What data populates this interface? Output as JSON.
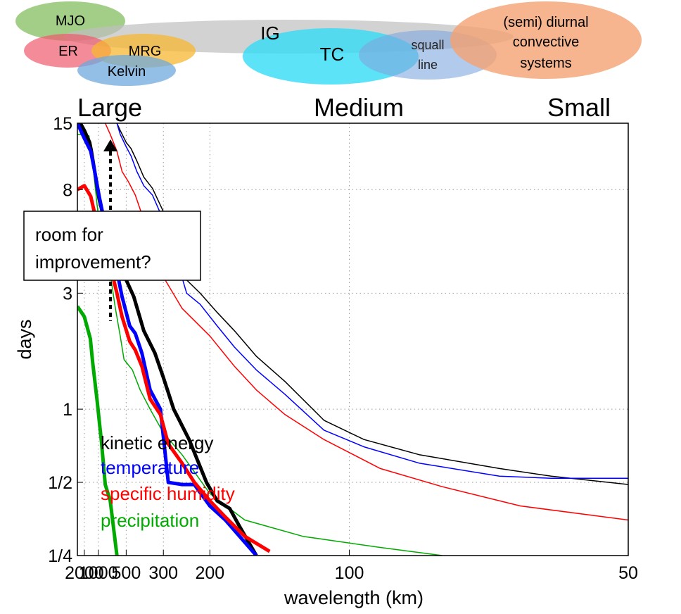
{
  "bubbles": [
    {
      "label": "MJO",
      "color": "#8cc26a"
    },
    {
      "label": "IG",
      "color": "#bfbfbf"
    },
    {
      "label": "ER",
      "color": "#f05a6e"
    },
    {
      "label": "MRG",
      "color": "#f7b731"
    },
    {
      "label": "Kelvin",
      "color": "#6fa8dc"
    },
    {
      "label": "TC",
      "color": "#33dcf5"
    },
    {
      "label": "squall line",
      "lines": [
        "squall",
        "line"
      ],
      "color": "#7fa6e0"
    },
    {
      "label": "(semi) diurnal convective systems",
      "lines": [
        "(semi) diurnal",
        "convective",
        "systems"
      ],
      "color": "#f4a373"
    }
  ],
  "scale_labels": [
    "Large",
    "Medium",
    "Small"
  ],
  "annotation": {
    "lines": [
      "room for",
      "improvement?"
    ]
  },
  "chart_data": {
    "type": "line",
    "xlabel": "wavelength (km)",
    "ylabel": "days",
    "x_axis": {
      "scale": "reciprocal",
      "ticks": [
        2000,
        1000,
        500,
        300,
        200,
        100,
        50
      ],
      "tick_labels": [
        "2000",
        "1000",
        "500",
        "300",
        "200",
        "100",
        "50"
      ],
      "range": [
        4000,
        50
      ]
    },
    "y_axis": {
      "scale": "log",
      "ticks": [
        0.25,
        0.5,
        1,
        3,
        8,
        15
      ],
      "tick_labels": [
        "1/4",
        "1/2",
        "1",
        "3",
        "8",
        "15"
      ],
      "range": [
        0.25,
        15
      ]
    },
    "grid": true,
    "legend_placement": "bottom-left",
    "legend": [
      {
        "name": "kinetic energy",
        "color": "#000000"
      },
      {
        "name": "temperature",
        "color": "#0000ff"
      },
      {
        "name": "specific humidity",
        "color": "#ff0000"
      },
      {
        "name": "precipitation",
        "color": "#00aa00"
      }
    ],
    "series": [
      {
        "name": "kinetic energy",
        "color": "#000000",
        "width": "thick",
        "x": [
          2800,
          2000,
          1450,
          1330,
          1150,
          970,
          800,
          640,
          560,
          500,
          440,
          380,
          330,
          300,
          270,
          235,
          205,
          190,
          175,
          165,
          150
        ],
        "y": [
          15,
          14,
          12.5,
          11.5,
          9.5,
          7.3,
          5.8,
          5,
          4.1,
          3.4,
          2.9,
          2.1,
          1.7,
          1.35,
          1.0,
          0.75,
          0.5,
          0.42,
          0.39,
          0.33,
          0.25
        ]
      },
      {
        "name": "temperature",
        "color": "#0000ff",
        "width": "thick",
        "x": [
          4000,
          2000,
          1370,
          1150,
          970,
          830,
          690,
          600,
          540,
          470,
          430,
          390,
          350,
          310,
          285,
          250,
          225,
          200,
          180,
          150
        ],
        "y": [
          15,
          13,
          11.5,
          9.5,
          7.5,
          6,
          4.8,
          3.7,
          2.9,
          2.2,
          2.05,
          1.7,
          1.2,
          1.0,
          0.5,
          0.49,
          0.49,
          0.4,
          0.35,
          0.25
        ]
      },
      {
        "name": "specific humidity",
        "color": "#ff0000",
        "width": "thick",
        "x": [
          4000,
          2000,
          1370,
          1000,
          820,
          690,
          600,
          540,
          470,
          430,
          390,
          350,
          310,
          285,
          250,
          225,
          200,
          180,
          160,
          140
        ],
        "y": [
          8,
          8.3,
          7.5,
          5.5,
          4.6,
          3.8,
          3.0,
          2.4,
          1.9,
          1.75,
          1.5,
          1.1,
          0.95,
          0.72,
          0.6,
          0.5,
          0.42,
          0.36,
          0.3,
          0.26
        ]
      },
      {
        "name": "precipitation",
        "color": "#00aa00",
        "width": "thick",
        "x": [
          4000,
          2000,
          1400,
          1250,
          1050,
          900,
          800,
          700,
          600
        ],
        "y": [
          2.65,
          2.4,
          1.95,
          1.55,
          1.1,
          0.74,
          0.49,
          0.42,
          0.25
        ]
      },
      {
        "name": "kinetic energy",
        "color": "#000000",
        "width": "thin",
        "x": [
          600,
          560,
          500,
          460,
          420,
          380,
          340,
          300,
          275,
          260,
          240,
          215,
          190,
          170,
          150,
          130,
          110,
          95,
          80,
          65,
          58,
          50
        ],
        "y": [
          15,
          14,
          12.5,
          11.8,
          10.5,
          9.0,
          8.1,
          6.5,
          5.6,
          4.6,
          3.4,
          3.0,
          2.5,
          2.1,
          1.65,
          1.3,
          0.9,
          0.75,
          0.65,
          0.57,
          0.53,
          0.49
        ]
      },
      {
        "name": "temperature",
        "color": "#0000ff",
        "width": "thin",
        "x": [
          600,
          560,
          500,
          460,
          420,
          380,
          340,
          300,
          275,
          260,
          240,
          215,
          190,
          170,
          150,
          130,
          110,
          95,
          80,
          65,
          58,
          50
        ],
        "y": [
          15,
          13.5,
          12,
          11,
          9.5,
          8.3,
          7.6,
          6.0,
          4.8,
          4.0,
          3.0,
          2.7,
          2.2,
          1.8,
          1.45,
          1.15,
          0.82,
          0.7,
          0.6,
          0.53,
          0.52,
          0.52
        ]
      },
      {
        "name": "specific humidity",
        "color": "#ff0000",
        "width": "thin",
        "x": [
          800,
          700,
          600,
          540,
          480,
          430,
          380,
          340,
          300,
          250,
          200,
          170,
          150,
          130,
          110,
          90,
          75,
          62,
          50
        ],
        "y": [
          15,
          13.5,
          11.5,
          9.5,
          8.6,
          7.6,
          6.0,
          5.0,
          3.5,
          2.6,
          2.0,
          1.5,
          1.2,
          0.95,
          0.75,
          0.57,
          0.48,
          0.4,
          0.35
        ]
      },
      {
        "name": "precipitation",
        "color": "#00aa00",
        "width": "thin",
        "x": [
          4000,
          1500,
          1400,
          1200,
          1050,
          900,
          820,
          700,
          620,
          560,
          520,
          450,
          400,
          350,
          300,
          250,
          200,
          160,
          120,
          90,
          75
        ],
        "y": [
          13.5,
          13.3,
          12,
          9.5,
          7.0,
          5.0,
          4.0,
          3.6,
          2.6,
          2.0,
          1.6,
          1.45,
          1.2,
          1.0,
          0.8,
          0.65,
          0.45,
          0.35,
          0.3,
          0.27,
          0.25
        ]
      }
    ]
  }
}
